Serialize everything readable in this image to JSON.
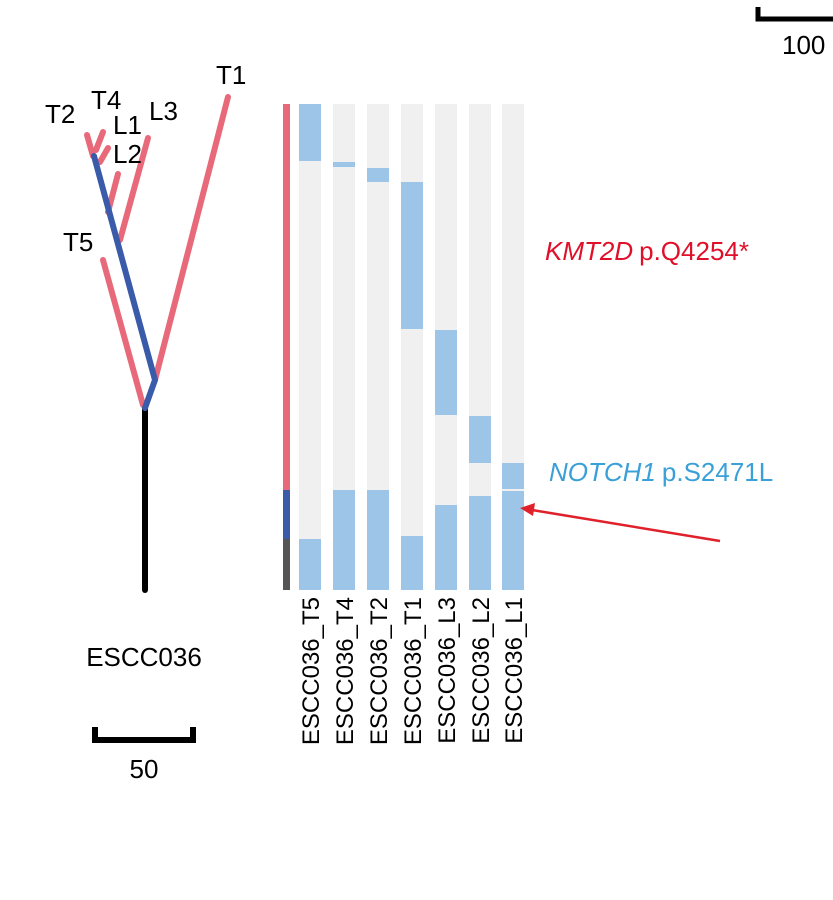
{
  "tree": {
    "patient_label": "ESCC036",
    "scale_bar_label": "50",
    "top_scale_bar_label": "100",
    "leaf_labels": [
      "T2",
      "T4",
      "L1",
      "L3",
      "L2",
      "T5",
      "T1"
    ],
    "colors": {
      "trunk": "#000000",
      "primary": "#e8697a",
      "metastatic": "#3a5ba9"
    }
  },
  "heatmap": {
    "samples": [
      "ESCC036_T5",
      "ESCC036_T4",
      "ESCC036_T2",
      "ESCC036_T1",
      "ESCC036_L3",
      "ESCC036_L2",
      "ESCC036_L1"
    ],
    "colors": {
      "present": "#9dc5e8",
      "absent": "#f0f0f0"
    },
    "side_bar_colors": [
      "#e8697a",
      "#3a5ba9",
      "#555555"
    ]
  },
  "annotations": {
    "kmt2d": {
      "gene": "KMT2D",
      "mutation": "p.Q4254*",
      "color": "#e0102a"
    },
    "notch1": {
      "gene": "NOTCH1",
      "mutation": "p.S2471L",
      "color": "#3aa0d8"
    },
    "arrow_color": "#e0202a"
  }
}
